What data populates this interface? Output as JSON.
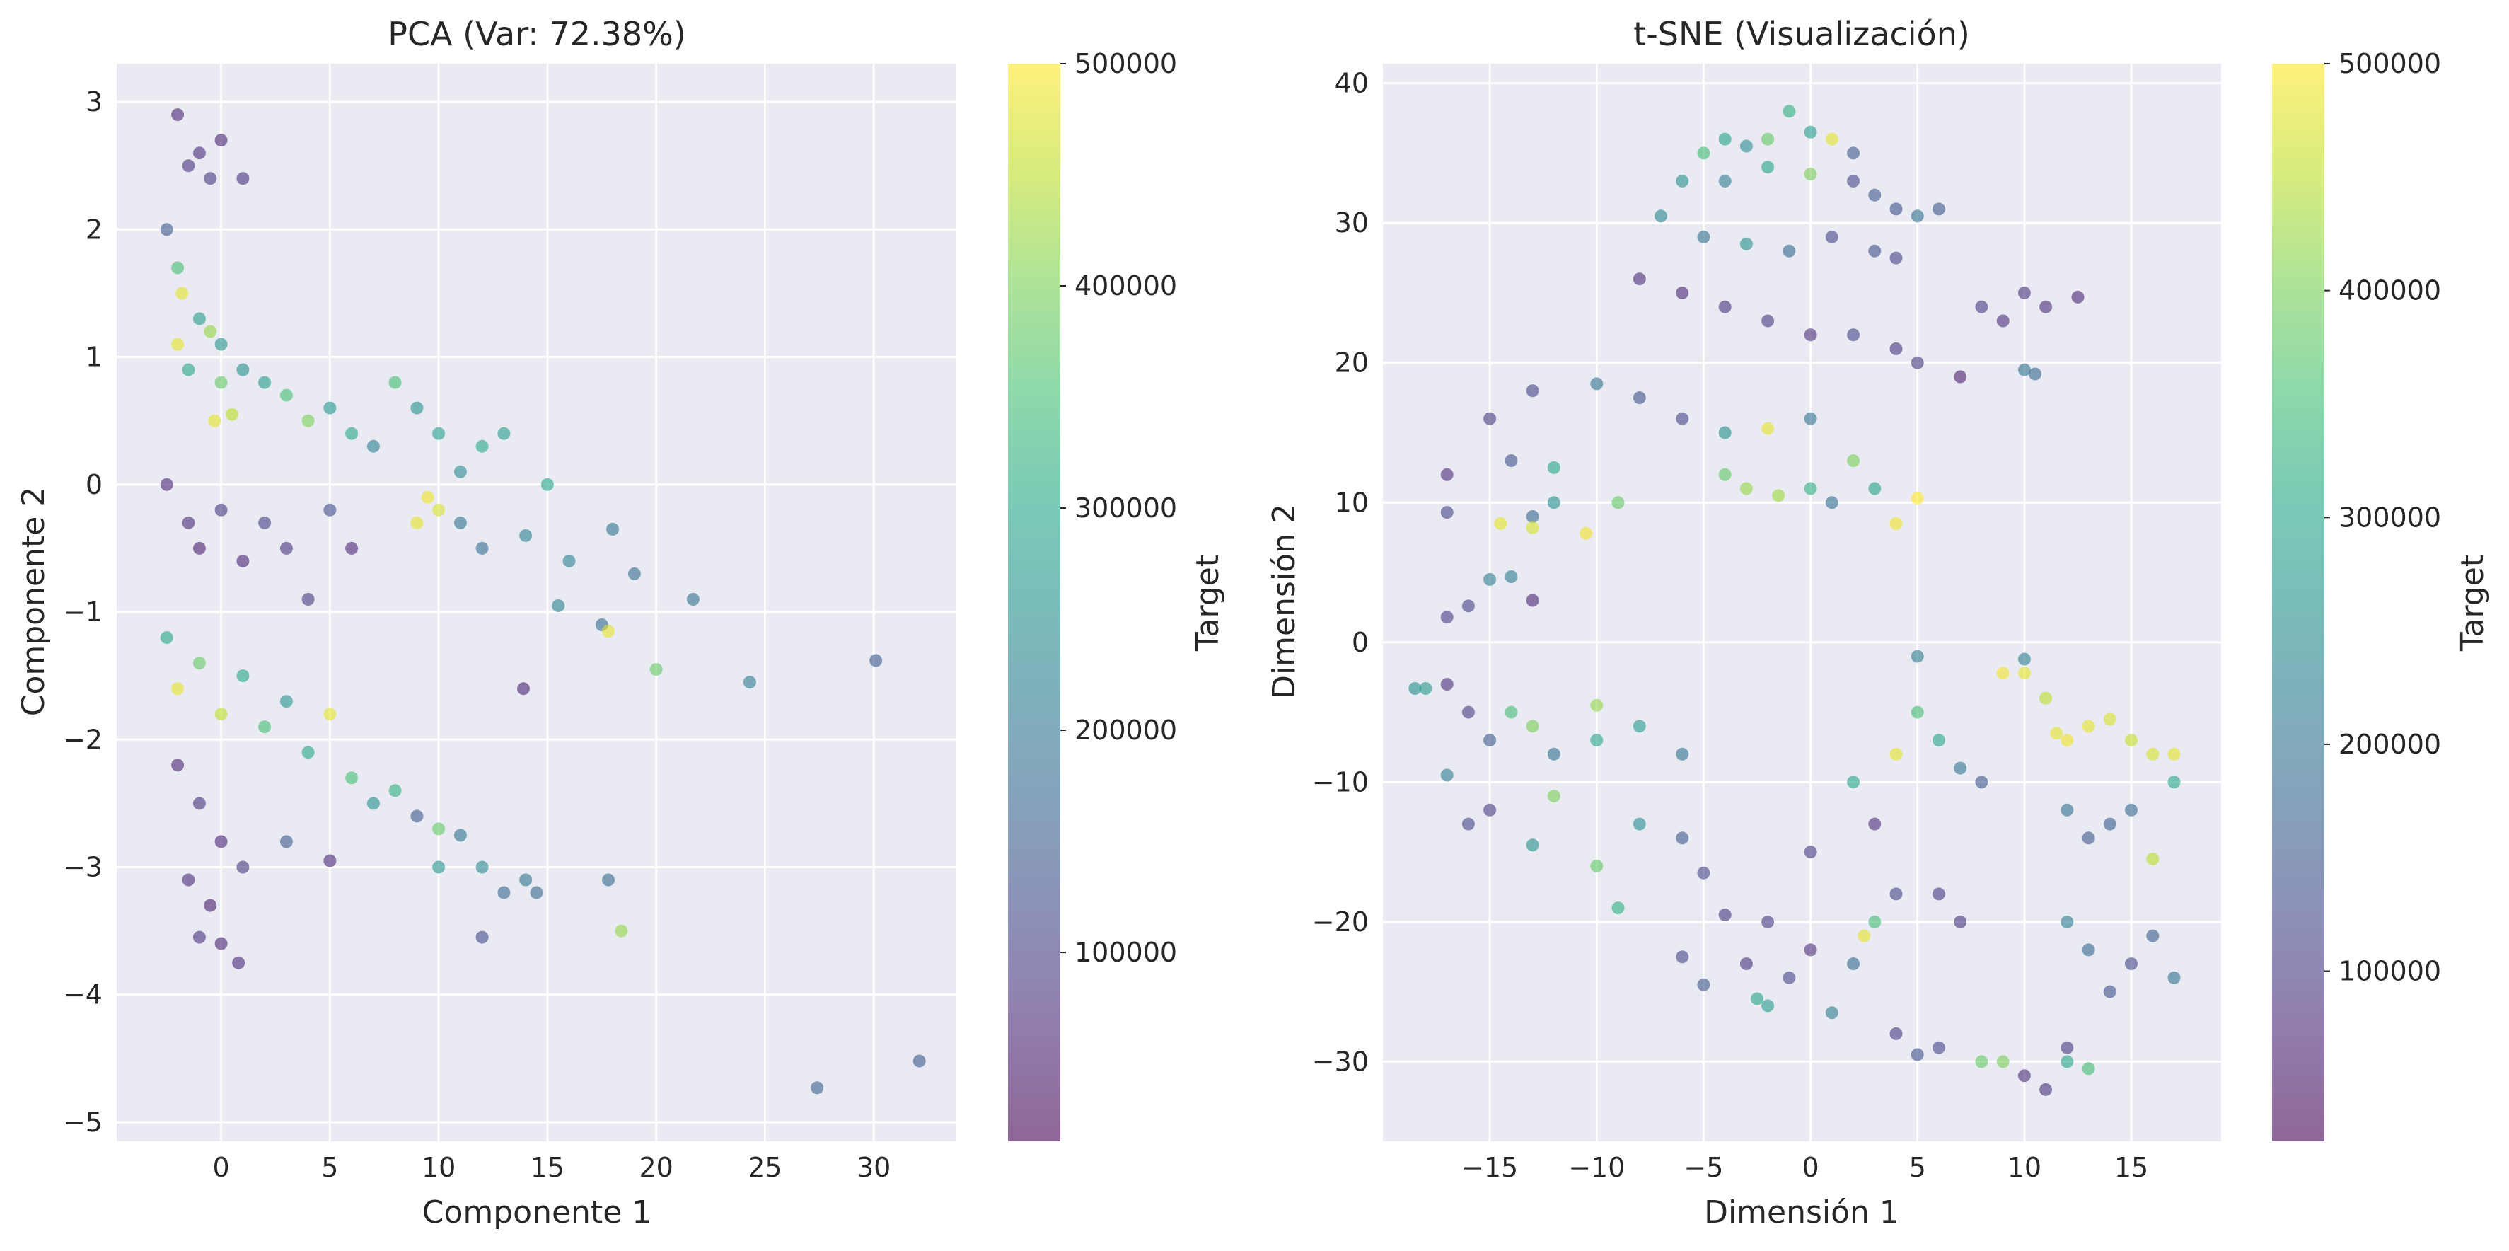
{
  "chart_data": [
    {
      "type": "scatter",
      "title": "PCA (Var: 72.38%)",
      "xlabel": "Componente 1",
      "ylabel": "Componente 2",
      "xlim": [
        -4.8,
        33.8
      ],
      "ylim": [
        -5.15,
        3.3
      ],
      "xticks": [
        0,
        5,
        10,
        15,
        20,
        25,
        30
      ],
      "yticks": [
        -5,
        -4,
        -3,
        -2,
        -1,
        0,
        1,
        2,
        3
      ],
      "tick_labels_x": [
        "0",
        "5",
        "10",
        "15",
        "20",
        "25",
        "30"
      ],
      "tick_labels_y": [
        "−5",
        "−4",
        "−3",
        "−2",
        "−1",
        "0",
        "1",
        "2",
        "3"
      ],
      "grid": true,
      "colorbar": {
        "label": "Target",
        "range": [
          15000,
          500000
        ],
        "ticks": [
          100000,
          200000,
          300000,
          400000,
          500000
        ],
        "tick_labels": [
          "100000",
          "200000",
          "300000",
          "400000",
          "500000"
        ],
        "colormap": "viridis"
      },
      "marker_alpha": 0.6,
      "points": [
        [
          -2,
          2.9,
          60000
        ],
        [
          -1.5,
          2.5,
          80000
        ],
        [
          -1,
          2.6,
          70000
        ],
        [
          -0.5,
          2.4,
          90000
        ],
        [
          0,
          2.7,
          60000
        ],
        [
          1,
          2.4,
          80000
        ],
        [
          -2.5,
          2.0,
          150000
        ],
        [
          -2,
          1.7,
          350000
        ],
        [
          -1.8,
          1.5,
          480000
        ],
        [
          -1,
          1.3,
          280000
        ],
        [
          -0.5,
          1.2,
          420000
        ],
        [
          0,
          1.1,
          260000
        ],
        [
          -2,
          1.1,
          480000
        ],
        [
          -1.5,
          0.9,
          300000
        ],
        [
          0,
          0.8,
          380000
        ],
        [
          1,
          0.9,
          250000
        ],
        [
          -0.3,
          0.5,
          480000
        ],
        [
          0.5,
          0.55,
          450000
        ],
        [
          2,
          0.8,
          280000
        ],
        [
          3,
          0.7,
          350000
        ],
        [
          4,
          0.5,
          400000
        ],
        [
          5,
          0.6,
          260000
        ],
        [
          6,
          0.4,
          300000
        ],
        [
          7,
          0.3,
          220000
        ],
        [
          8,
          0.8,
          350000
        ],
        [
          9,
          0.6,
          250000
        ],
        [
          10,
          0.4,
          280000
        ],
        [
          11,
          0.1,
          240000
        ],
        [
          12,
          0.3,
          300000
        ],
        [
          13,
          0.4,
          280000
        ],
        [
          -2.5,
          0.0,
          60000
        ],
        [
          -1.5,
          -0.3,
          70000
        ],
        [
          -1,
          -0.5,
          50000
        ],
        [
          0,
          -0.2,
          90000
        ],
        [
          1,
          -0.6,
          60000
        ],
        [
          2,
          -0.3,
          100000
        ],
        [
          3,
          -0.5,
          80000
        ],
        [
          4,
          -0.9,
          90000
        ],
        [
          5,
          -0.2,
          120000
        ],
        [
          6,
          -0.5,
          60000
        ],
        [
          9,
          -0.3,
          480000
        ],
        [
          9.5,
          -0.1,
          490000
        ],
        [
          10,
          -0.2,
          470000
        ],
        [
          11,
          -0.3,
          200000
        ],
        [
          12,
          -0.5,
          180000
        ],
        [
          14,
          -0.4,
          220000
        ],
        [
          15,
          0.0,
          300000
        ],
        [
          16,
          -0.6,
          220000
        ],
        [
          15.5,
          -0.95,
          230000
        ],
        [
          17.5,
          -1.1,
          180000
        ],
        [
          18,
          -0.35,
          200000
        ],
        [
          19,
          -0.7,
          180000
        ],
        [
          21.7,
          -0.9,
          190000
        ],
        [
          17.8,
          -1.15,
          480000
        ],
        [
          20,
          -1.45,
          380000
        ],
        [
          24.3,
          -1.55,
          210000
        ],
        [
          30.1,
          -1.38,
          150000
        ],
        [
          13.9,
          -1.6,
          60000
        ],
        [
          -2.5,
          -1.2,
          300000
        ],
        [
          -2,
          -1.6,
          480000
        ],
        [
          -1,
          -1.4,
          380000
        ],
        [
          0,
          -1.8,
          450000
        ],
        [
          1,
          -1.5,
          300000
        ],
        [
          2,
          -1.9,
          350000
        ],
        [
          3,
          -1.7,
          260000
        ],
        [
          4,
          -2.1,
          300000
        ],
        [
          5,
          -1.8,
          480000
        ],
        [
          6,
          -2.3,
          350000
        ],
        [
          7,
          -2.5,
          250000
        ],
        [
          8,
          -2.4,
          320000
        ],
        [
          -2,
          -2.2,
          60000
        ],
        [
          -1,
          -2.5,
          80000
        ],
        [
          0,
          -2.8,
          60000
        ],
        [
          1,
          -3.0,
          90000
        ],
        [
          -1.5,
          -3.1,
          70000
        ],
        [
          -0.5,
          -3.3,
          50000
        ],
        [
          0,
          -3.6,
          60000
        ],
        [
          0.8,
          -3.75,
          70000
        ],
        [
          -1,
          -3.55,
          80000
        ],
        [
          3,
          -2.8,
          150000
        ],
        [
          5,
          -2.95,
          60000
        ],
        [
          9,
          -2.6,
          150000
        ],
        [
          10,
          -2.7,
          380000
        ],
        [
          10,
          -3.0,
          260000
        ],
        [
          11,
          -2.75,
          200000
        ],
        [
          12,
          -3.0,
          240000
        ],
        [
          13,
          -3.2,
          170000
        ],
        [
          14,
          -3.1,
          200000
        ],
        [
          14.5,
          -3.2,
          180000
        ],
        [
          17.8,
          -3.1,
          180000
        ],
        [
          18.4,
          -3.5,
          420000
        ],
        [
          12,
          -3.55,
          120000
        ],
        [
          27.4,
          -4.73,
          160000
        ],
        [
          32.1,
          -4.52,
          150000
        ]
      ]
    },
    {
      "type": "scatter",
      "title": "t-SNE (Visualización)",
      "xlabel": "Dimensión 1",
      "ylabel": "Dimensión 2",
      "xlim": [
        -20.0,
        19.2
      ],
      "ylim": [
        -35.7,
        41.4
      ],
      "xticks": [
        -15,
        -10,
        -5,
        0,
        5,
        10,
        15
      ],
      "yticks": [
        -30,
        -20,
        -10,
        0,
        10,
        20,
        30,
        40
      ],
      "tick_labels_x": [
        "−15",
        "−10",
        "−5",
        "0",
        "5",
        "10",
        "15"
      ],
      "tick_labels_y": [
        "−30",
        "−20",
        "−10",
        "0",
        "10",
        "20",
        "30",
        "40"
      ],
      "grid": true,
      "colorbar": {
        "label": "Target",
        "range": [
          25000,
          500000
        ],
        "ticks": [
          100000,
          200000,
          300000,
          400000,
          500000
        ],
        "tick_labels": [
          "100000",
          "200000",
          "300000",
          "400000",
          "500000"
        ],
        "colormap": "viridis"
      },
      "marker_alpha": 0.6,
      "points": [
        [
          -5,
          35,
          350000
        ],
        [
          -4,
          36,
          300000
        ],
        [
          -3,
          35.5,
          250000
        ],
        [
          -2,
          36,
          380000
        ],
        [
          -1,
          38,
          320000
        ],
        [
          0,
          36.5,
          280000
        ],
        [
          1,
          36,
          480000
        ],
        [
          2,
          35,
          150000
        ],
        [
          -6,
          33,
          260000
        ],
        [
          -4,
          33,
          220000
        ],
        [
          -2,
          34,
          300000
        ],
        [
          0,
          33.5,
          400000
        ],
        [
          2,
          33,
          120000
        ],
        [
          3,
          32,
          150000
        ],
        [
          4,
          31,
          140000
        ],
        [
          5,
          30.5,
          200000
        ],
        [
          6,
          31,
          150000
        ],
        [
          -7,
          30.5,
          240000
        ],
        [
          -5,
          29,
          200000
        ],
        [
          -3,
          28.5,
          260000
        ],
        [
          -1,
          28,
          180000
        ],
        [
          1,
          29,
          120000
        ],
        [
          3,
          28,
          140000
        ],
        [
          4,
          27.5,
          110000
        ],
        [
          -8,
          26,
          80000
        ],
        [
          -6,
          25,
          70000
        ],
        [
          -4,
          24,
          90000
        ],
        [
          -2,
          23,
          100000
        ],
        [
          0,
          22,
          80000
        ],
        [
          2,
          22,
          120000
        ],
        [
          4,
          21,
          90000
        ],
        [
          5,
          20,
          100000
        ],
        [
          7,
          19,
          60000
        ],
        [
          8,
          24,
          100000
        ],
        [
          9,
          23,
          80000
        ],
        [
          10,
          25,
          90000
        ],
        [
          11,
          24,
          80000
        ],
        [
          12.5,
          24.7,
          70000
        ],
        [
          10,
          19.5,
          200000
        ],
        [
          10.5,
          19.2,
          180000
        ],
        [
          -10,
          18.5,
          200000
        ],
        [
          -8,
          17.5,
          140000
        ],
        [
          -6,
          16,
          120000
        ],
        [
          -4,
          15,
          260000
        ],
        [
          -2,
          15.3,
          480000
        ],
        [
          0,
          16,
          200000
        ],
        [
          -15,
          16,
          100000
        ],
        [
          -13,
          18,
          120000
        ],
        [
          -14,
          13,
          140000
        ],
        [
          -12,
          12.5,
          300000
        ],
        [
          -12,
          10,
          260000
        ],
        [
          -13,
          9,
          180000
        ],
        [
          -14.5,
          8.5,
          480000
        ],
        [
          -13,
          8.2,
          470000
        ],
        [
          -10.5,
          7.8,
          490000
        ],
        [
          -9,
          10,
          380000
        ],
        [
          -4,
          12,
          380000
        ],
        [
          -3,
          11,
          420000
        ],
        [
          -1.5,
          10.5,
          430000
        ],
        [
          0,
          11,
          320000
        ],
        [
          1,
          10,
          200000
        ],
        [
          2,
          13,
          400000
        ],
        [
          3,
          11,
          300000
        ],
        [
          4,
          8.5,
          490000
        ],
        [
          5,
          10.3,
          500000
        ],
        [
          -17,
          12,
          80000
        ],
        [
          -17,
          9.3,
          120000
        ],
        [
          -17,
          1.8,
          100000
        ],
        [
          -16,
          2.6,
          110000
        ],
        [
          -15,
          4.5,
          220000
        ],
        [
          -14,
          4.7,
          220000
        ],
        [
          -13,
          3,
          70000
        ],
        [
          -18.5,
          -3.3,
          260000
        ],
        [
          -18,
          -3.3,
          280000
        ],
        [
          -17,
          -3,
          80000
        ],
        [
          -16,
          -5,
          100000
        ],
        [
          -15,
          -7,
          150000
        ],
        [
          -14,
          -5,
          350000
        ],
        [
          -13,
          -6,
          400000
        ],
        [
          -12,
          -8,
          200000
        ],
        [
          -10,
          -4.5,
          420000
        ],
        [
          -10,
          -7,
          300000
        ],
        [
          -8,
          -6,
          280000
        ],
        [
          -6,
          -8,
          200000
        ],
        [
          -17,
          -9.5,
          220000
        ],
        [
          -16,
          -13,
          120000
        ],
        [
          -15,
          -12,
          100000
        ],
        [
          -13,
          -14.5,
          260000
        ],
        [
          -12,
          -11,
          400000
        ],
        [
          -10,
          -16,
          380000
        ],
        [
          -9,
          -19,
          320000
        ],
        [
          -8,
          -13,
          250000
        ],
        [
          -6,
          -14,
          150000
        ],
        [
          -5,
          -16.5,
          120000
        ],
        [
          -4,
          -19.5,
          100000
        ],
        [
          -6,
          -22.5,
          120000
        ],
        [
          -5,
          -24.5,
          150000
        ],
        [
          -3,
          -23,
          90000
        ],
        [
          -2,
          -20,
          100000
        ],
        [
          -1,
          -24,
          120000
        ],
        [
          0,
          -22,
          80000
        ],
        [
          -2.5,
          -25.5,
          300000
        ],
        [
          -2,
          -26,
          280000
        ],
        [
          1,
          -26.5,
          220000
        ],
        [
          2,
          -23,
          180000
        ],
        [
          0,
          -15,
          100000
        ],
        [
          2,
          -10,
          300000
        ],
        [
          3,
          -13,
          80000
        ],
        [
          4,
          -8,
          480000
        ],
        [
          5,
          -5,
          350000
        ],
        [
          6,
          -7,
          300000
        ],
        [
          7,
          -9,
          200000
        ],
        [
          8,
          -10,
          150000
        ],
        [
          5,
          -1,
          220000
        ],
        [
          3,
          -20,
          350000
        ],
        [
          2.5,
          -21,
          480000
        ],
        [
          4,
          -18,
          120000
        ],
        [
          6,
          -18,
          100000
        ],
        [
          7,
          -20,
          90000
        ],
        [
          9,
          -2.2,
          490000
        ],
        [
          10,
          -2.2,
          480000
        ],
        [
          11,
          -4,
          450000
        ],
        [
          12,
          -7,
          490000
        ],
        [
          13,
          -6,
          480000
        ],
        [
          14,
          -5.5,
          470000
        ],
        [
          15,
          -7,
          460000
        ],
        [
          16,
          -8,
          470000
        ],
        [
          17,
          -8,
          480000
        ],
        [
          10,
          -1.2,
          220000
        ],
        [
          11.5,
          -6.5,
          480000
        ],
        [
          12,
          -12,
          200000
        ],
        [
          13,
          -14,
          150000
        ],
        [
          14,
          -13,
          160000
        ],
        [
          15,
          -12,
          180000
        ],
        [
          16,
          -15.5,
          450000
        ],
        [
          17,
          -10,
          300000
        ],
        [
          12,
          -20,
          220000
        ],
        [
          13,
          -22,
          180000
        ],
        [
          14,
          -25,
          140000
        ],
        [
          15,
          -23,
          120000
        ],
        [
          16,
          -21,
          160000
        ],
        [
          17,
          -24,
          200000
        ],
        [
          10,
          -31,
          80000
        ],
        [
          11,
          -32,
          90000
        ],
        [
          12,
          -29,
          100000
        ],
        [
          12,
          -30,
          300000
        ],
        [
          13,
          -30.5,
          350000
        ],
        [
          9,
          -30,
          400000
        ],
        [
          8,
          -30,
          380000
        ],
        [
          6,
          -29,
          120000
        ],
        [
          4,
          -28,
          100000
        ],
        [
          5,
          -29.5,
          140000
        ]
      ]
    }
  ]
}
